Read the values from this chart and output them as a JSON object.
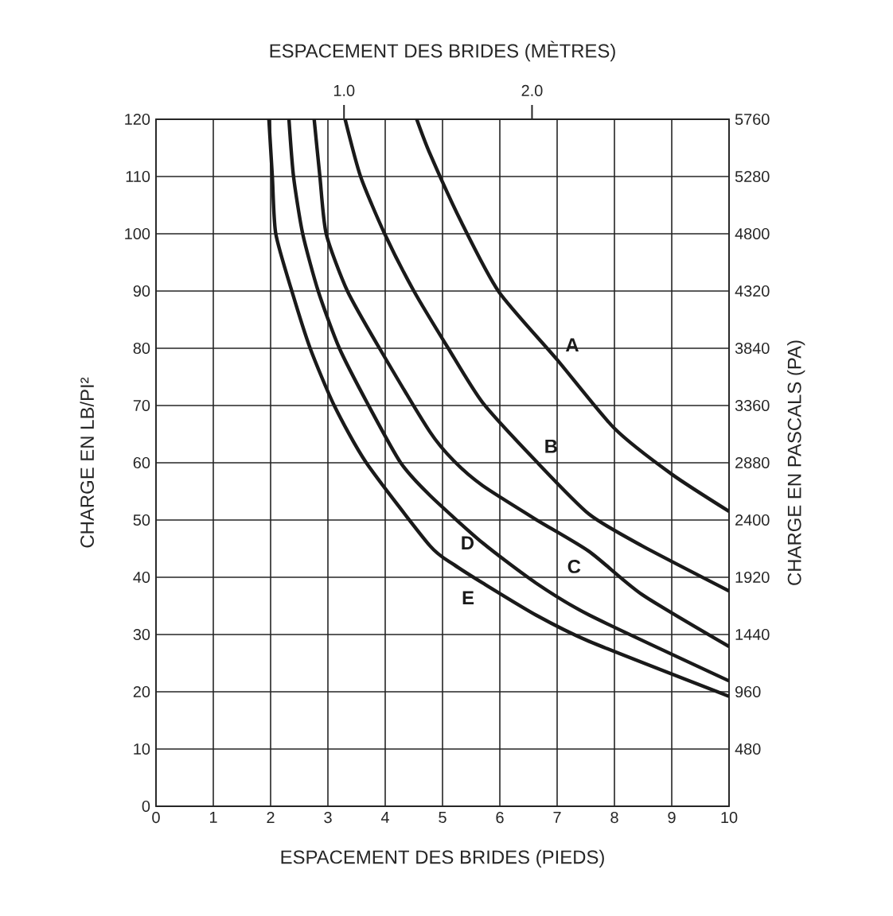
{
  "chart_data": {
    "type": "line",
    "xlabel": "ESPACEMENT DES BRIDES (PIEDS)",
    "x2label": "ESPACEMENT DES BRIDES (MÈTRES)",
    "ylabel": "CHARGE EN LB/PI²",
    "y2label": "CHARGE EN PASCALS (PA)",
    "xlim": [
      0,
      10
    ],
    "xticks": [
      0,
      1,
      2,
      3,
      4,
      5,
      6,
      7,
      8,
      9,
      10
    ],
    "ylim": [
      0,
      120
    ],
    "yticks": [
      0,
      10,
      20,
      30,
      40,
      50,
      60,
      70,
      80,
      90,
      100,
      110,
      120
    ],
    "y2lim": [
      0,
      5760
    ],
    "y2ticks": [
      480,
      960,
      1440,
      1920,
      2400,
      2880,
      3360,
      3840,
      4320,
      4800,
      5280,
      5760
    ],
    "x2lim": [
      0,
      3.048
    ],
    "x2ticks": [
      {
        "value": 1.0,
        "label": "1.0"
      },
      {
        "value": 2.0,
        "label": "2.0"
      }
    ],
    "grid": true,
    "legend": false,
    "marker": "none",
    "line_style": "solid",
    "series": [
      {
        "name": "A",
        "color": "#1a1a1a",
        "x": [
          4.55,
          4.78,
          5.33,
          5.98,
          7,
          8,
          9,
          10
        ],
        "values": [
          120,
          114,
          102,
          89.9,
          78,
          66,
          58,
          51.5
        ]
      },
      {
        "name": "B",
        "color": "#1a1a1a",
        "x": [
          3.3,
          3.57,
          3.99,
          4.5,
          5.1,
          5.7,
          6.63,
          7.56,
          8.48,
          10
        ],
        "values": [
          120,
          110,
          100,
          90,
          80,
          70.5,
          60.3,
          51,
          45.5,
          37.6
        ]
      },
      {
        "name": "C",
        "color": "#1a1a1a",
        "x": [
          2.76,
          2.86,
          2.97,
          3.34,
          3.9,
          4.78,
          5.2,
          5.7,
          6.63,
          7.56,
          8.48,
          10
        ],
        "values": [
          120,
          110,
          100,
          90,
          80,
          65.4,
          60.3,
          56,
          50.1,
          44.5,
          37,
          27.9
        ]
      },
      {
        "name": "D",
        "color": "#1a1a1a",
        "x": [
          2.32,
          2.4,
          2.56,
          2.83,
          3.2,
          3.71,
          4.27,
          4.78,
          5.7,
          6.63,
          7.56,
          10
        ],
        "values": [
          120,
          110,
          100,
          90,
          80,
          70,
          60,
          54.3,
          46,
          39,
          33.4,
          21.9
        ]
      },
      {
        "name": "E",
        "color": "#1a1a1a",
        "x": [
          1.97,
          2.03,
          2.09,
          2.37,
          2.69,
          3.11,
          3.67,
          4.78,
          5.2,
          5.7,
          6.63,
          7.56,
          10
        ],
        "values": [
          120,
          110,
          100,
          90,
          80,
          70,
          60,
          45.5,
          42.2,
          39,
          33.4,
          28.8,
          19.2
        ]
      }
    ]
  }
}
